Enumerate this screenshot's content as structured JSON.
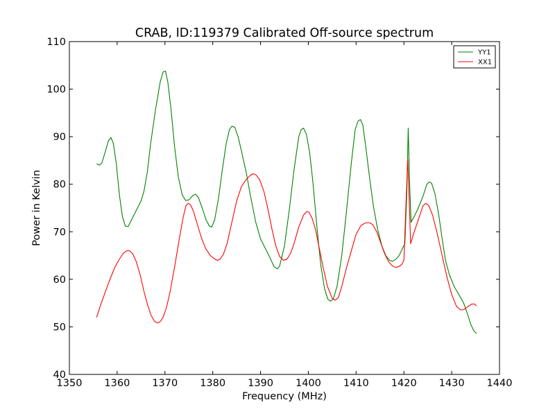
{
  "chart_data": {
    "type": "line",
    "title": "CRAB, ID:119379 Calibrated Off-source spectrum",
    "xlabel": "Frequency (MHz)",
    "ylabel": "Power in Kelvin",
    "xlim": [
      1350,
      1440
    ],
    "ylim": [
      40,
      110
    ],
    "xticks": [
      1350,
      1360,
      1370,
      1380,
      1390,
      1400,
      1410,
      1420,
      1430,
      1440
    ],
    "yticks": [
      40,
      50,
      60,
      70,
      80,
      90,
      100,
      110
    ],
    "grid": false,
    "legend_position": "top-right",
    "series": [
      {
        "name": "YY1",
        "color": "#008000",
        "points": [
          [
            1355.7,
            84.3
          ],
          [
            1356.3,
            84.0
          ],
          [
            1356.8,
            84.5
          ],
          [
            1357.5,
            86.8
          ],
          [
            1358.2,
            89.2
          ],
          [
            1358.7,
            89.8
          ],
          [
            1359.2,
            88.6
          ],
          [
            1359.8,
            84.5
          ],
          [
            1360.5,
            77.5
          ],
          [
            1361.1,
            73.2
          ],
          [
            1361.7,
            71.2
          ],
          [
            1362.3,
            71.1
          ],
          [
            1363.0,
            72.5
          ],
          [
            1364.0,
            74.5
          ],
          [
            1365.0,
            76.5
          ],
          [
            1365.6,
            78.5
          ],
          [
            1366.3,
            82.5
          ],
          [
            1367.0,
            88.5
          ],
          [
            1368.0,
            95.5
          ],
          [
            1369.0,
            101.5
          ],
          [
            1369.6,
            103.6
          ],
          [
            1370.1,
            103.8
          ],
          [
            1370.6,
            101.5
          ],
          [
            1371.3,
            95.5
          ],
          [
            1372.0,
            88.0
          ],
          [
            1372.8,
            81.5
          ],
          [
            1373.6,
            77.8
          ],
          [
            1374.3,
            76.6
          ],
          [
            1375.0,
            76.7
          ],
          [
            1375.8,
            77.6
          ],
          [
            1376.4,
            77.9
          ],
          [
            1377.0,
            77.2
          ],
          [
            1377.8,
            75.0
          ],
          [
            1378.6,
            72.5
          ],
          [
            1379.3,
            71.2
          ],
          [
            1379.8,
            71.0
          ],
          [
            1380.4,
            72.5
          ],
          [
            1381.2,
            77.0
          ],
          [
            1382.0,
            83.0
          ],
          [
            1382.8,
            88.5
          ],
          [
            1383.5,
            91.5
          ],
          [
            1384.0,
            92.2
          ],
          [
            1384.6,
            92.0
          ],
          [
            1385.3,
            90.0
          ],
          [
            1386.0,
            87.0
          ],
          [
            1387.0,
            82.5
          ],
          [
            1388.0,
            77.0
          ],
          [
            1389.0,
            72.0
          ],
          [
            1390.0,
            68.5
          ],
          [
            1391.0,
            66.5
          ],
          [
            1392.0,
            64.5
          ],
          [
            1392.8,
            62.7
          ],
          [
            1393.5,
            62.2
          ],
          [
            1394.0,
            62.8
          ],
          [
            1395.0,
            67.0
          ],
          [
            1396.0,
            74.5
          ],
          [
            1397.0,
            83.0
          ],
          [
            1398.0,
            90.0
          ],
          [
            1398.5,
            91.5
          ],
          [
            1399.0,
            91.8
          ],
          [
            1399.6,
            90.5
          ],
          [
            1400.3,
            86.5
          ],
          [
            1401.0,
            80.0
          ],
          [
            1401.8,
            71.0
          ],
          [
            1402.6,
            63.0
          ],
          [
            1403.4,
            58.0
          ],
          [
            1404.1,
            55.8
          ],
          [
            1404.6,
            55.4
          ],
          [
            1405.2,
            55.8
          ],
          [
            1406.0,
            58.5
          ],
          [
            1407.0,
            65.0
          ],
          [
            1408.0,
            74.5
          ],
          [
            1409.0,
            84.5
          ],
          [
            1409.8,
            91.5
          ],
          [
            1410.4,
            93.3
          ],
          [
            1410.9,
            93.6
          ],
          [
            1411.4,
            92.5
          ],
          [
            1412.0,
            88.0
          ],
          [
            1412.8,
            81.5
          ],
          [
            1413.6,
            75.5
          ],
          [
            1414.5,
            70.5
          ],
          [
            1415.4,
            67.0
          ],
          [
            1416.2,
            65.0
          ],
          [
            1417.0,
            64.0
          ],
          [
            1417.6,
            63.8
          ],
          [
            1418.3,
            64.2
          ],
          [
            1419.0,
            65.0
          ],
          [
            1419.7,
            66.5
          ],
          [
            1420.2,
            67.5
          ],
          [
            1420.6,
            78.0
          ],
          [
            1420.9,
            91.8
          ],
          [
            1421.2,
            80.0
          ],
          [
            1421.5,
            72.0
          ],
          [
            1422.3,
            73.5
          ],
          [
            1423.0,
            75.0
          ],
          [
            1424.0,
            77.5
          ],
          [
            1424.8,
            80.0
          ],
          [
            1425.3,
            80.5
          ],
          [
            1425.8,
            80.2
          ],
          [
            1426.5,
            78.0
          ],
          [
            1427.3,
            73.5
          ],
          [
            1428.0,
            68.5
          ],
          [
            1428.7,
            64.0
          ],
          [
            1429.5,
            61.0
          ],
          [
            1430.5,
            58.5
          ],
          [
            1431.5,
            56.8
          ],
          [
            1432.5,
            55.0
          ],
          [
            1433.2,
            53.0
          ],
          [
            1434.0,
            50.5
          ],
          [
            1434.6,
            49.2
          ],
          [
            1435.2,
            48.6
          ]
        ]
      },
      {
        "name": "XX1",
        "color": "#ff0000",
        "points": [
          [
            1355.7,
            52.0
          ],
          [
            1356.5,
            54.5
          ],
          [
            1357.5,
            57.3
          ],
          [
            1358.5,
            60.0
          ],
          [
            1359.5,
            62.5
          ],
          [
            1360.5,
            64.3
          ],
          [
            1361.3,
            65.5
          ],
          [
            1362.0,
            66.0
          ],
          [
            1362.6,
            66.0
          ],
          [
            1363.3,
            65.3
          ],
          [
            1364.0,
            63.7
          ],
          [
            1364.8,
            61.0
          ],
          [
            1365.6,
            57.5
          ],
          [
            1366.4,
            54.5
          ],
          [
            1367.1,
            52.4
          ],
          [
            1367.8,
            51.2
          ],
          [
            1368.4,
            50.8
          ],
          [
            1369.0,
            51.1
          ],
          [
            1369.6,
            52.0
          ],
          [
            1370.3,
            54.0
          ],
          [
            1371.0,
            57.0
          ],
          [
            1372.0,
            62.5
          ],
          [
            1373.0,
            68.5
          ],
          [
            1373.8,
            73.0
          ],
          [
            1374.4,
            75.5
          ],
          [
            1374.9,
            76.0
          ],
          [
            1375.4,
            75.6
          ],
          [
            1376.0,
            74.2
          ],
          [
            1376.8,
            71.5
          ],
          [
            1377.6,
            68.8
          ],
          [
            1378.5,
            66.5
          ],
          [
            1379.5,
            65.0
          ],
          [
            1380.5,
            64.2
          ],
          [
            1381.0,
            64.0
          ],
          [
            1381.5,
            64.2
          ],
          [
            1382.2,
            65.2
          ],
          [
            1383.0,
            67.5
          ],
          [
            1384.0,
            72.0
          ],
          [
            1385.0,
            76.5
          ],
          [
            1386.0,
            79.5
          ],
          [
            1387.0,
            81.0
          ],
          [
            1387.8,
            81.8
          ],
          [
            1388.4,
            82.2
          ],
          [
            1389.0,
            82.0
          ],
          [
            1389.8,
            81.0
          ],
          [
            1390.7,
            78.5
          ],
          [
            1391.5,
            75.0
          ],
          [
            1392.4,
            70.5
          ],
          [
            1393.2,
            67.0
          ],
          [
            1394.0,
            64.8
          ],
          [
            1394.8,
            64.0
          ],
          [
            1395.5,
            64.2
          ],
          [
            1396.3,
            65.5
          ],
          [
            1397.0,
            67.5
          ],
          [
            1398.0,
            71.0
          ],
          [
            1399.0,
            73.5
          ],
          [
            1399.6,
            74.2
          ],
          [
            1400.1,
            74.2
          ],
          [
            1400.8,
            72.8
          ],
          [
            1401.5,
            70.5
          ],
          [
            1402.3,
            66.5
          ],
          [
            1403.1,
            62.5
          ],
          [
            1404.0,
            58.5
          ],
          [
            1405.0,
            56.0
          ],
          [
            1405.6,
            55.6
          ],
          [
            1406.3,
            56.2
          ],
          [
            1407.0,
            58.5
          ],
          [
            1408.0,
            62.5
          ],
          [
            1409.0,
            66.0
          ],
          [
            1410.0,
            69.5
          ],
          [
            1411.0,
            71.3
          ],
          [
            1412.0,
            71.9
          ],
          [
            1412.8,
            71.9
          ],
          [
            1413.5,
            71.5
          ],
          [
            1414.4,
            69.8
          ],
          [
            1415.2,
            67.5
          ],
          [
            1416.0,
            65.3
          ],
          [
            1416.8,
            63.7
          ],
          [
            1417.6,
            62.8
          ],
          [
            1418.3,
            62.5
          ],
          [
            1419.0,
            62.7
          ],
          [
            1419.6,
            63.2
          ],
          [
            1420.0,
            64.0
          ],
          [
            1420.4,
            75.0
          ],
          [
            1420.8,
            85.3
          ],
          [
            1421.2,
            74.0
          ],
          [
            1421.4,
            67.5
          ],
          [
            1422.0,
            69.5
          ],
          [
            1423.0,
            72.5
          ],
          [
            1424.0,
            75.5
          ],
          [
            1424.6,
            76.0
          ],
          [
            1425.2,
            75.5
          ],
          [
            1426.0,
            73.5
          ],
          [
            1427.0,
            69.5
          ],
          [
            1428.0,
            65.0
          ],
          [
            1429.0,
            60.5
          ],
          [
            1430.0,
            56.8
          ],
          [
            1431.0,
            54.3
          ],
          [
            1431.8,
            53.6
          ],
          [
            1432.5,
            53.6
          ],
          [
            1433.3,
            54.2
          ],
          [
            1434.2,
            54.8
          ],
          [
            1434.8,
            54.8
          ],
          [
            1435.2,
            54.4
          ]
        ]
      }
    ]
  }
}
